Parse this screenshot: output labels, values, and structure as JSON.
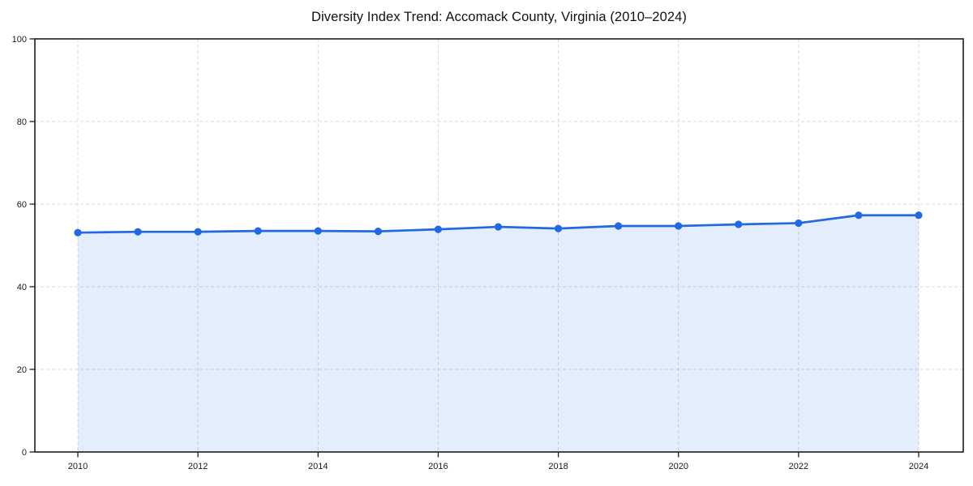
{
  "chart_data": {
    "type": "line",
    "title": "Diversity Index Trend: Accomack County, Virginia (2010–2024)",
    "x": [
      2010,
      2011,
      2012,
      2013,
      2014,
      2015,
      2016,
      2017,
      2018,
      2019,
      2020,
      2021,
      2022,
      2023,
      2024
    ],
    "series": [
      {
        "name": "Diversity Index",
        "values": [
          53.1,
          53.3,
          53.3,
          53.5,
          53.5,
          53.4,
          53.9,
          54.5,
          54.1,
          54.7,
          54.7,
          55.1,
          55.4,
          57.3,
          57.3
        ]
      }
    ],
    "xlabel": "",
    "ylabel": "",
    "ylim": [
      0,
      100
    ],
    "yticks": [
      0,
      20,
      40,
      60,
      80,
      100
    ],
    "xticks": [
      2010,
      2012,
      2014,
      2016,
      2018,
      2020,
      2022,
      2024
    ],
    "grid": true,
    "grid_style": "dashed",
    "legend": false,
    "style": {
      "line_color": "#2169e2",
      "fill_color": "rgba(33, 105, 226, 0.12)",
      "marker": "circle",
      "grid_color": "#d9d9d9",
      "axis_color": "#1c1c1c",
      "tick_label_color": "#1a1a1a",
      "background": "#ffffff"
    }
  }
}
